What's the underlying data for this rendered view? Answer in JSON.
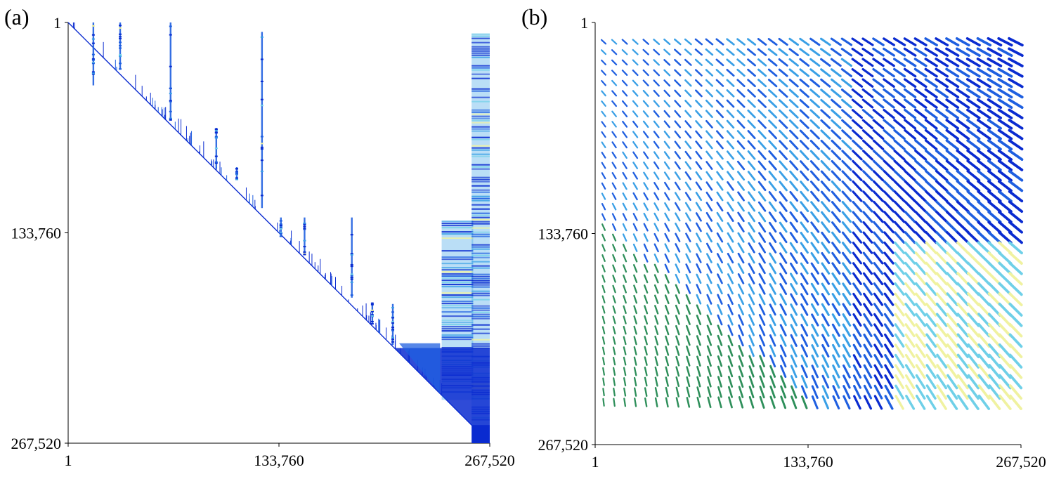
{
  "panels": [
    {
      "label": "(a)"
    },
    {
      "label": "(b)"
    }
  ],
  "colors": {
    "dark_blue": "#0a2bd0",
    "mid_blue": "#1f5fe0",
    "light_blue": "#3aa0e6",
    "cyan": "#6fd0e8",
    "pale_yellow": "#f0f2a0",
    "green": "#2e8f5a"
  },
  "chart_data": [
    {
      "type": "heatmap",
      "panel": "(a)",
      "description_kind": "sparse-matrix-pattern",
      "xlim": [
        1,
        267520
      ],
      "ylim": [
        1,
        267520
      ],
      "y_inverted": true,
      "x_ticks": [
        "1",
        "133,760",
        "267,520"
      ],
      "y_ticks": [
        "1",
        "133,760",
        "267,520"
      ],
      "x_tick_values": [
        1,
        133760,
        267520
      ],
      "y_tick_values": [
        1,
        133760,
        267520
      ],
      "structure": "upper-triangular",
      "column_spikes": [
        {
          "col": 16000,
          "from_row": 1,
          "to_row": 40000
        },
        {
          "col": 33000,
          "from_row": 1,
          "to_row": 30000
        },
        {
          "col": 65000,
          "from_row": 1,
          "to_row": 62000
        },
        {
          "col": 123000,
          "from_row": 6000,
          "to_row": 118000
        },
        {
          "col": 94000,
          "from_row": 67000,
          "to_row": 93000
        },
        {
          "col": 107000,
          "from_row": 92000,
          "to_row": 100000
        },
        {
          "col": 135000,
          "from_row": 124000,
          "to_row": 136000
        },
        {
          "col": 150000,
          "from_row": 124000,
          "to_row": 148000
        },
        {
          "col": 180000,
          "from_row": 124000,
          "to_row": 175000
        },
        {
          "col": 193000,
          "from_row": 178000,
          "to_row": 192000
        },
        {
          "col": 206000,
          "from_row": 179000,
          "to_row": 205000
        }
      ],
      "dense_blocks": [
        {
          "col_from": 237000,
          "col_to": 257000,
          "row_from": 126000,
          "row_to": 240000
        },
        {
          "col_from": 256000,
          "col_to": 267520,
          "row_from": 7000,
          "row_to": 258000
        },
        {
          "col_from": 256000,
          "col_to": 267520,
          "row_from": 256000,
          "row_to": 267520
        }
      ]
    },
    {
      "type": "heatmap",
      "panel": "(b)",
      "description_kind": "block-structured-matrix-pattern",
      "xlim": [
        1,
        267520
      ],
      "ylim": [
        1,
        267520
      ],
      "y_inverted": true,
      "x_ticks": [
        "1",
        "133,760",
        "267,520"
      ],
      "y_ticks": [
        "1",
        "133,760",
        "267,520"
      ],
      "x_tick_values": [
        1,
        133760,
        267520
      ],
      "y_tick_values": [
        1,
        133760,
        267520
      ],
      "grid_columns": 40,
      "grid_rows": 36,
      "block_region": {
        "col_from": 2000,
        "col_to": 267520,
        "row_from": 9000,
        "row_to": 244000
      }
    }
  ]
}
